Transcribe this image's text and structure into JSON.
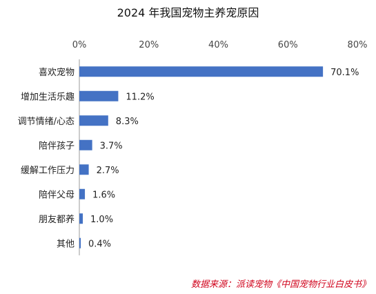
{
  "chart_data": {
    "type": "bar",
    "orientation": "horizontal",
    "title": "2024 年我国宠物主养宠原因",
    "categories": [
      "喜欢宠物",
      "增加生活乐趣",
      "调节情绪/心态",
      "陪伴孩子",
      "缓解工作压力",
      "陪伴父母",
      "朋友都养",
      "其他"
    ],
    "values": [
      70.1,
      11.2,
      8.3,
      3.7,
      2.7,
      1.6,
      1.0,
      0.4
    ],
    "value_labels": [
      "70.1%",
      "11.2%",
      "8.3%",
      "3.7%",
      "2.7%",
      "1.6%",
      "1.0%",
      "0.4%"
    ],
    "xlim": [
      0,
      80
    ],
    "xticks": [
      "0%",
      "20%",
      "40%",
      "60%",
      "80%"
    ],
    "x_axis_position": "top",
    "bar_color": "#4472c4",
    "grid": false,
    "source": "数据来源：派读宠物《中国宠物行业白皮书》",
    "source_color": "#d0021b"
  }
}
